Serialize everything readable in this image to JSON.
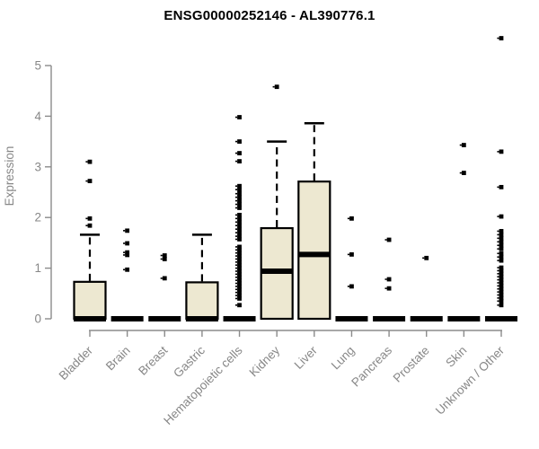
{
  "chart_data": {
    "type": "boxplot",
    "title": "ENSG00000252146 - AL390776.1",
    "ylabel": "Expression",
    "xlabel": "",
    "ylim": [
      0,
      5.6
    ],
    "yticks": [
      0,
      1,
      2,
      3,
      4,
      5
    ],
    "grid": false,
    "legend": "none",
    "colors": {
      "box_fill": "#EDE8D1",
      "box_stroke": "#000000",
      "median": "#000000",
      "whisker": "#000000",
      "outlier": "#000000",
      "axis": "#8B8B8B",
      "label": "#878787",
      "title": "#000000",
      "background": "#FFFFFF"
    },
    "categories": [
      "Bladder",
      "Brain",
      "Breast",
      "Gastric",
      "Hematopoietic cells",
      "Kidney",
      "Liver",
      "Lung",
      "Pancreas",
      "Prostate",
      "Skin",
      "Unknown / Other"
    ],
    "series": [
      {
        "name": "Bladder",
        "q1": 0,
        "median": 0,
        "q3": 0.73,
        "whisker_low": 0,
        "whisker_high": 1.66,
        "outliers": [
          3.1,
          2.72,
          1.98,
          1.84
        ]
      },
      {
        "name": "Brain",
        "q1": 0,
        "median": 0,
        "q3": 0,
        "whisker_low": 0,
        "whisker_high": 0,
        "outliers": [
          1.74,
          1.49,
          1.31,
          1.26,
          0.97
        ]
      },
      {
        "name": "Breast",
        "q1": 0,
        "median": 0,
        "q3": 0,
        "whisker_low": 0,
        "whisker_high": 0,
        "outliers": [
          1.25,
          1.18,
          0.8
        ]
      },
      {
        "name": "Gastric",
        "q1": 0,
        "median": 0,
        "q3": 0.72,
        "whisker_low": 0,
        "whisker_high": 1.66,
        "outliers": []
      },
      {
        "name": "Hematopoietic cells",
        "q1": 0,
        "median": 0,
        "q3": 0,
        "whisker_low": 0,
        "whisker_high": 0,
        "outliers": [
          3.98,
          3.5,
          3.27,
          3.11,
          2.62,
          2.55,
          2.47,
          2.4,
          2.33,
          2.26,
          2.19,
          2.05,
          1.98,
          1.91,
          1.84,
          1.77,
          1.7,
          1.63,
          1.57,
          1.42,
          1.36,
          1.3,
          1.24,
          1.18,
          1.12,
          1.06,
          1.0,
          0.94,
          0.88,
          0.82,
          0.76,
          0.7,
          0.64,
          0.58,
          0.52,
          0.46,
          0.4,
          0.27
        ]
      },
      {
        "name": "Kidney",
        "q1": 0,
        "median": 0.94,
        "q3": 1.79,
        "whisker_low": 0,
        "whisker_high": 3.5,
        "outliers": [
          4.58
        ]
      },
      {
        "name": "Liver",
        "q1": 0,
        "median": 1.27,
        "q3": 2.71,
        "whisker_low": 0,
        "whisker_high": 3.86,
        "outliers": []
      },
      {
        "name": "Lung",
        "q1": 0,
        "median": 0,
        "q3": 0,
        "whisker_low": 0,
        "whisker_high": 0,
        "outliers": [
          1.98,
          1.27,
          0.64
        ]
      },
      {
        "name": "Pancreas",
        "q1": 0,
        "median": 0,
        "q3": 0,
        "whisker_low": 0,
        "whisker_high": 0,
        "outliers": [
          1.56,
          0.78,
          0.6
        ]
      },
      {
        "name": "Prostate",
        "q1": 0,
        "median": 0,
        "q3": 0,
        "whisker_low": 0,
        "whisker_high": 0,
        "outliers": [
          1.2
        ]
      },
      {
        "name": "Skin",
        "q1": 0,
        "median": 0,
        "q3": 0,
        "whisker_low": 0,
        "whisker_high": 0,
        "outliers": [
          3.43,
          2.88
        ]
      },
      {
        "name": "Unknown / Other",
        "q1": 0,
        "median": 0,
        "q3": 0,
        "whisker_low": 0,
        "whisker_high": 0,
        "outliers": [
          5.54,
          3.3,
          2.6,
          2.02,
          1.73,
          1.66,
          1.59,
          1.52,
          1.45,
          1.38,
          1.29,
          1.22,
          1.15,
          1.01,
          0.95,
          0.89,
          0.83,
          0.77,
          0.71,
          0.65,
          0.59,
          0.53,
          0.47,
          0.41,
          0.35,
          0.27
        ]
      }
    ]
  }
}
